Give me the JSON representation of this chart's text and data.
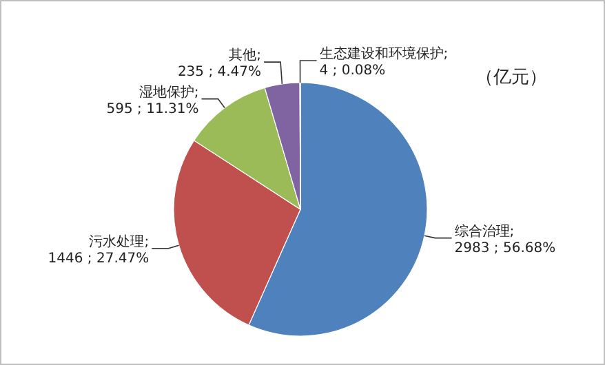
{
  "chart_data": {
    "type": "pie",
    "categories": [
      "综合治理",
      "污水处理",
      "湿地保护",
      "其他",
      "生态建设和环境保护"
    ],
    "values": [
      2983,
      1446,
      595,
      235,
      4
    ],
    "value_labels": [
      "; 2983 ; 56.68%",
      "; 1446 ; 27.47%",
      "; 595 ; 11.31%",
      "; 235 ; 4.47%",
      "; 4 ; 0.08%"
    ],
    "colors": [
      "#4f81bd",
      "#c0504d",
      "#9bbb59",
      "#8064a2",
      "#4bacc6"
    ],
    "annotations": [
      "（亿元）"
    ],
    "legend": false
  }
}
